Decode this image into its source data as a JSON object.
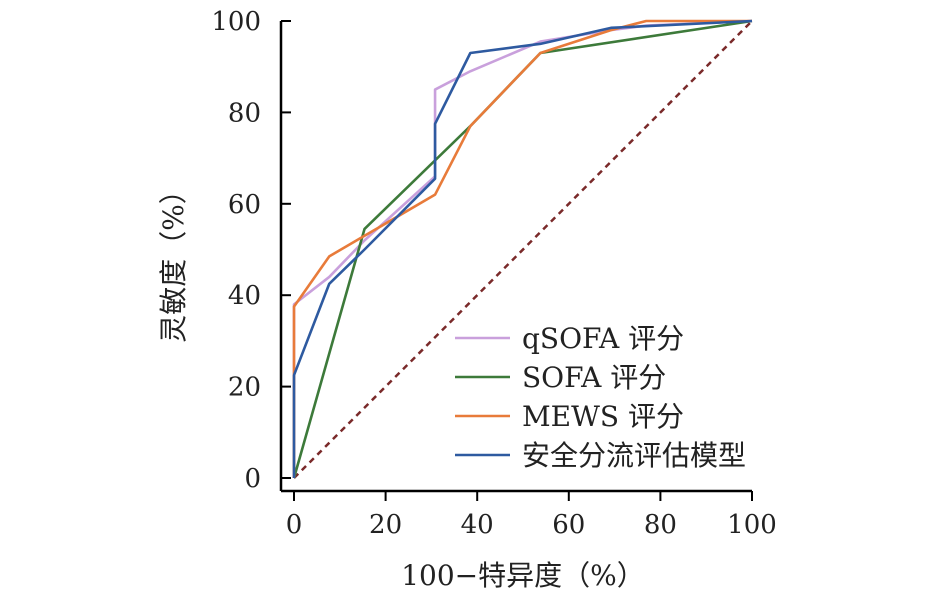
{
  "chart_data": {
    "type": "line",
    "title": "",
    "xlabel": "100−特异度（%）",
    "ylabel": "灵敏度（%）",
    "xlim": [
      0,
      100
    ],
    "ylim": [
      0,
      100
    ],
    "xticks": [
      0,
      20,
      40,
      60,
      80,
      100
    ],
    "yticks": [
      0,
      20,
      40,
      60,
      80,
      100
    ],
    "grid": false,
    "legend_position": "bottom-right",
    "series": [
      {
        "name": "qSOFA 评分",
        "color": "#c9a0dc",
        "points": [
          [
            0,
            0
          ],
          [
            0,
            38
          ],
          [
            7.7,
            44
          ],
          [
            15.4,
            52
          ],
          [
            30.8,
            66
          ],
          [
            30.8,
            85
          ],
          [
            38.5,
            89
          ],
          [
            53.8,
            95.5
          ],
          [
            69.2,
            98
          ],
          [
            76.9,
            99
          ],
          [
            100,
            100
          ]
        ]
      },
      {
        "name": "SOFA 评分",
        "color": "#3d7a3a",
        "points": [
          [
            0,
            0
          ],
          [
            15.4,
            54.5
          ],
          [
            38.5,
            77
          ],
          [
            53.8,
            93
          ],
          [
            100,
            100
          ]
        ]
      },
      {
        "name": "MEWS 评分",
        "color": "#e87b3a",
        "points": [
          [
            0,
            0
          ],
          [
            0,
            37.5
          ],
          [
            7.7,
            48.5
          ],
          [
            15.4,
            53
          ],
          [
            30.8,
            62
          ],
          [
            38.5,
            77
          ],
          [
            53.8,
            93
          ],
          [
            69.2,
            98
          ],
          [
            76.9,
            100
          ],
          [
            100,
            100
          ]
        ]
      },
      {
        "name": "安全分流评估模型",
        "color": "#2e5aa0",
        "points": [
          [
            0,
            0
          ],
          [
            0,
            22.5
          ],
          [
            7.7,
            42.5
          ],
          [
            15.4,
            50
          ],
          [
            30.8,
            65.5
          ],
          [
            30.8,
            77.5
          ],
          [
            38.5,
            93
          ],
          [
            53.8,
            95
          ],
          [
            69.2,
            98.5
          ],
          [
            100,
            100
          ]
        ]
      }
    ],
    "reference_line": {
      "color": "#7a2a2a",
      "points": [
        [
          0,
          0
        ],
        [
          100,
          100
        ]
      ]
    }
  }
}
